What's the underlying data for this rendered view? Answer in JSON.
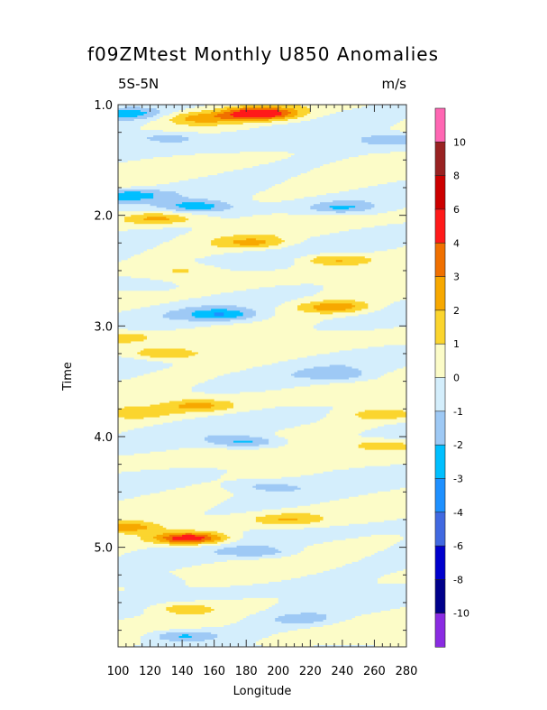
{
  "chart_data": {
    "type": "heatmap",
    "title": "f09ZMtest Monthly U850 Anomalies",
    "region_label": "5S-5N",
    "units": "m/s",
    "xlabel": "Longitude",
    "ylabel": "Time",
    "xlim": [
      100,
      280
    ],
    "ylim": [
      1.0,
      5.9
    ],
    "y_inverted": true,
    "x_ticks": [
      "100",
      "120",
      "140",
      "160",
      "180",
      "200",
      "220",
      "240",
      "260",
      "280"
    ],
    "y_ticks": [
      "1.0",
      "2.0",
      "3.0",
      "4.0",
      "5.0"
    ],
    "colorbar": {
      "labels": [
        "10",
        "8",
        "6",
        "4",
        "3",
        "2",
        "1",
        "0",
        "-1",
        "-2",
        "-3",
        "-4",
        "-6",
        "-8",
        "-10"
      ],
      "levels": [
        -10,
        -8,
        -6,
        -4,
        -3,
        -2,
        -1,
        0,
        1,
        2,
        3,
        4,
        6,
        8,
        10
      ],
      "colors": [
        "#8a2be2",
        "#00008b",
        "#0000cd",
        "#4169e1",
        "#1e90ff",
        "#00bfff",
        "#9ec9f5",
        "#d4eefc",
        "#fcfcc8",
        "#fbd52e",
        "#f7a800",
        "#f07000",
        "#ff1a1a",
        "#cc0000",
        "#992222",
        "#ff66b3"
      ]
    },
    "features": [
      {
        "time": 1.08,
        "lon": 188,
        "value": 5.0
      },
      {
        "time": 1.12,
        "lon": 150,
        "value": 2.0
      },
      {
        "time": 1.08,
        "lon": 105,
        "value": -2.5
      },
      {
        "time": 1.3,
        "lon": 130,
        "value": -1.5
      },
      {
        "time": 1.32,
        "lon": 270,
        "value": -2.0
      },
      {
        "time": 1.82,
        "lon": 105,
        "value": -2.5
      },
      {
        "time": 1.92,
        "lon": 150,
        "value": -2.5
      },
      {
        "time": 1.93,
        "lon": 240,
        "value": -2.0
      },
      {
        "time": 2.03,
        "lon": 125,
        "value": 2.2
      },
      {
        "time": 2.25,
        "lon": 185,
        "value": 2.0
      },
      {
        "time": 2.4,
        "lon": 235,
        "value": 2.2
      },
      {
        "time": 2.5,
        "lon": 140,
        "value": 1.2
      },
      {
        "time": 2.65,
        "lon": 120,
        "value": -1.2
      },
      {
        "time": 2.83,
        "lon": 235,
        "value": 2.5
      },
      {
        "time": 2.9,
        "lon": 165,
        "value": -2.5
      },
      {
        "time": 3.1,
        "lon": 100,
        "value": 1.6
      },
      {
        "time": 3.25,
        "lon": 130,
        "value": 2.2
      },
      {
        "time": 3.45,
        "lon": 240,
        "value": -1.2
      },
      {
        "time": 3.72,
        "lon": 150,
        "value": 2.0
      },
      {
        "time": 3.78,
        "lon": 110,
        "value": 1.5
      },
      {
        "time": 3.8,
        "lon": 265,
        "value": 1.5
      },
      {
        "time": 4.05,
        "lon": 180,
        "value": -2.5
      },
      {
        "time": 4.08,
        "lon": 265,
        "value": 2.0
      },
      {
        "time": 4.45,
        "lon": 190,
        "value": -1.2
      },
      {
        "time": 4.75,
        "lon": 205,
        "value": 1.8
      },
      {
        "time": 4.82,
        "lon": 105,
        "value": 2.5
      },
      {
        "time": 4.92,
        "lon": 145,
        "value": 5.0
      },
      {
        "time": 5.05,
        "lon": 190,
        "value": -1.5
      },
      {
        "time": 5.3,
        "lon": 120,
        "value": -1.2
      },
      {
        "time": 5.55,
        "lon": 140,
        "value": 1.5
      },
      {
        "time": 5.65,
        "lon": 215,
        "value": -1.2
      },
      {
        "time": 5.8,
        "lon": 140,
        "value": -2.2
      },
      {
        "time": 5.85,
        "lon": 280,
        "value": 1.2
      }
    ]
  }
}
